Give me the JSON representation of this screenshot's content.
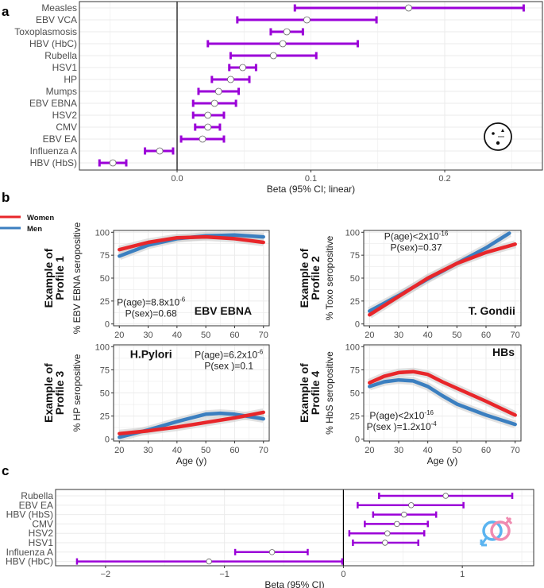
{
  "panel_labels": {
    "a": "a",
    "b": "b",
    "c": "c"
  },
  "colors": {
    "ci": "#9b00d8",
    "women": "#e8262a",
    "men": "#3b7fc0",
    "band": "#cfcfcf",
    "grid": "#ebebeb"
  },
  "icons": {
    "panel_a": "clock-icon",
    "panel_c": "male-female-symbol-icon"
  },
  "chart_data": [
    {
      "id": "a",
      "type": "forest",
      "xlabel": "Beta (95% CI; linear)",
      "xlim": [
        -0.073,
        0.273
      ],
      "xticks": [
        0.0,
        0.1,
        0.2
      ],
      "xtick_labels": [
        "0.0",
        "0.1",
        "0.2"
      ],
      "grid": true,
      "rows": [
        {
          "label": "Measles",
          "beta": 0.173,
          "lo": 0.088,
          "hi": 0.259
        },
        {
          "label": "EBV VCA",
          "beta": 0.097,
          "lo": 0.045,
          "hi": 0.149
        },
        {
          "label": "Toxoplasmosis",
          "beta": 0.082,
          "lo": 0.07,
          "hi": 0.094
        },
        {
          "label": "HBV (HbC)",
          "beta": 0.079,
          "lo": 0.023,
          "hi": 0.135
        },
        {
          "label": "Rubella",
          "beta": 0.072,
          "lo": 0.04,
          "hi": 0.104
        },
        {
          "label": "HSV1",
          "beta": 0.049,
          "lo": 0.039,
          "hi": 0.059
        },
        {
          "label": "HP",
          "beta": 0.04,
          "lo": 0.026,
          "hi": 0.054
        },
        {
          "label": "Mumps",
          "beta": 0.031,
          "lo": 0.016,
          "hi": 0.046
        },
        {
          "label": "EBV EBNA",
          "beta": 0.028,
          "lo": 0.012,
          "hi": 0.044
        },
        {
          "label": "HSV2",
          "beta": 0.023,
          "lo": 0.012,
          "hi": 0.035
        },
        {
          "label": "CMV",
          "beta": 0.023,
          "lo": 0.0135,
          "hi": 0.032
        },
        {
          "label": "EBV EA",
          "beta": 0.019,
          "lo": 0.003,
          "hi": 0.035
        },
        {
          "label": "Influenza A",
          "beta": -0.013,
          "lo": -0.024,
          "hi": -0.003
        },
        {
          "label": "HBV (HbS)",
          "beta": -0.048,
          "lo": -0.058,
          "hi": -0.038
        }
      ]
    },
    {
      "id": "b",
      "type": "line",
      "legend": {
        "placement": "top-left",
        "entries": [
          "Women",
          "Men"
        ]
      },
      "xlabel": "Age (y)",
      "xlim": [
        18,
        72
      ],
      "ylim": [
        -2,
        102
      ],
      "xticks": [
        20,
        30,
        40,
        50,
        60,
        70
      ],
      "yticks": [
        0,
        25,
        50,
        75,
        100
      ],
      "grid": true,
      "panels": [
        {
          "profile": [
            "Example of",
            "Profile 1"
          ],
          "ylabel": "% EBV EBNA seropositive",
          "title": "EBV EBNA",
          "pvals": [
            {
              "text": "P(age)=8.8x10",
              "sup": "-6"
            },
            {
              "text": "P(sex)=0.68",
              "sup": ""
            }
          ],
          "women": {
            "x": [
              20,
              30,
              40,
              50,
              60,
              70
            ],
            "y": [
              81,
              89,
              94,
              95,
              93,
              89
            ]
          },
          "men": {
            "x": [
              20,
              30,
              40,
              50,
              60,
              70
            ],
            "y": [
              74,
              86,
              93,
              96,
              97,
              95
            ]
          }
        },
        {
          "profile": [
            "Example of",
            "Profile 2"
          ],
          "ylabel": "% Toxo seropositive",
          "title": "T. Gondii",
          "pvals": [
            {
              "text": "P(age)<2x10",
              "sup": "-16"
            },
            {
              "text": "P(sex)=0.37",
              "sup": ""
            }
          ],
          "women": {
            "x": [
              20,
              30,
              40,
              50,
              60,
              70
            ],
            "y": [
              10,
              30,
              50,
              66,
              78,
              87
            ]
          },
          "men": {
            "x": [
              20,
              30,
              40,
              50,
              60,
              68
            ],
            "y": [
              14,
              31,
              49,
              66,
              83,
              99
            ]
          }
        },
        {
          "profile": [
            "Example of",
            "Profile 3"
          ],
          "ylabel": "% HP seropositive",
          "title": "H.Pylori",
          "pvals": [
            {
              "text": "P(age)=6.2x10",
              "sup": "-6"
            },
            {
              "text": "P(sex )=0.1",
              "sup": ""
            }
          ],
          "women": {
            "x": [
              20,
              30,
              40,
              50,
              60,
              70
            ],
            "y": [
              6,
              9,
              13,
              18,
              23,
              29
            ]
          },
          "men": {
            "x": [
              20,
              30,
              40,
              50,
              55,
              60,
              70
            ],
            "y": [
              2,
              10,
              19,
              27,
              28,
              27,
              22
            ]
          }
        },
        {
          "profile": [
            "Example of",
            "Profile 4"
          ],
          "ylabel": "% HbS seropositive",
          "title": "HBs",
          "pvals": [
            {
              "text": "P(age)<2x10",
              "sup": "-16"
            },
            {
              "text": "P(sex )=1.2x10",
              "sup": "-4"
            }
          ],
          "women": {
            "x": [
              20,
              25,
              30,
              35,
              40,
              45,
              50,
              60,
              70
            ],
            "y": [
              61,
              68,
              72,
              73,
              70,
              62,
              55,
              41,
              26
            ]
          },
          "men": {
            "x": [
              20,
              25,
              30,
              35,
              40,
              45,
              50,
              60,
              70
            ],
            "y": [
              57,
              62,
              64,
              63,
              57,
              47,
              38,
              26,
              16
            ]
          }
        }
      ]
    },
    {
      "id": "c",
      "type": "forest",
      "xlabel": "Beta (95% CI)",
      "xlim": [
        -2.42,
        1.6
      ],
      "xticks": [
        -2,
        -1,
        0,
        1
      ],
      "xtick_labels": [
        "−2",
        "−1",
        "0",
        "1"
      ],
      "grid": true,
      "rows": [
        {
          "label": "Rubella",
          "beta": 0.86,
          "lo": 0.3,
          "hi": 1.42
        },
        {
          "label": "EBV EA",
          "beta": 0.57,
          "lo": 0.12,
          "hi": 1.01
        },
        {
          "label": "HBV (HbS)",
          "beta": 0.51,
          "lo": 0.25,
          "hi": 0.78
        },
        {
          "label": "CMV",
          "beta": 0.45,
          "lo": 0.18,
          "hi": 0.71
        },
        {
          "label": "HSV2",
          "beta": 0.37,
          "lo": 0.05,
          "hi": 0.68
        },
        {
          "label": "HSV1",
          "beta": 0.35,
          "lo": 0.08,
          "hi": 0.63
        },
        {
          "label": "Influenza A",
          "beta": -0.6,
          "lo": -0.91,
          "hi": -0.3
        },
        {
          "label": "HBV (HbC)",
          "beta": -1.13,
          "lo": -2.24,
          "hi": -0.01
        }
      ]
    }
  ]
}
